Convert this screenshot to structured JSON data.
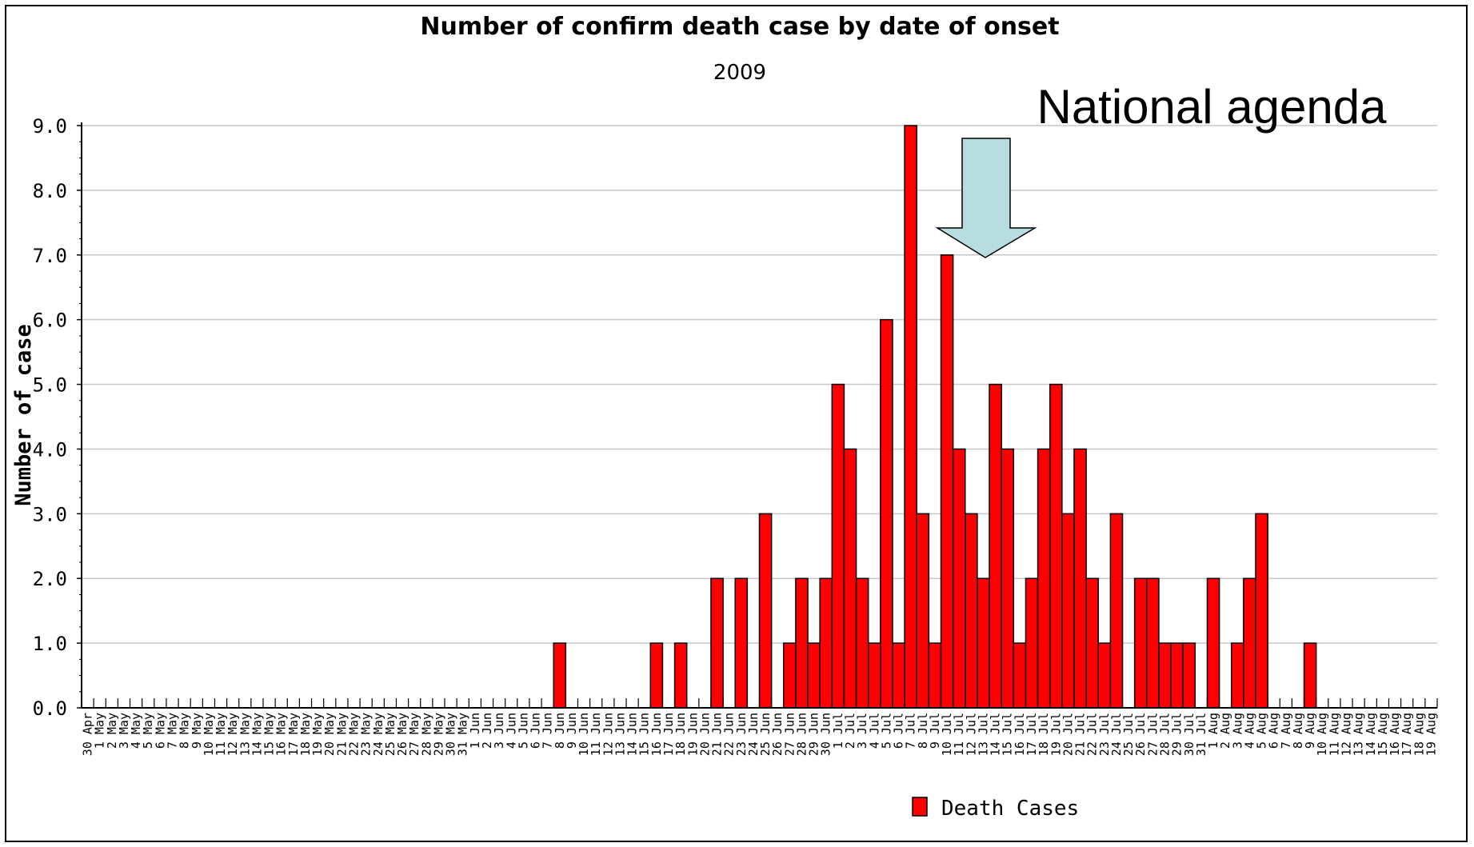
{
  "chart_data": {
    "type": "bar",
    "title": "Number of confirm death case by date of onset",
    "subtitle": "2009",
    "ylabel": "Number of case",
    "xlabel": "",
    "ylim": [
      0,
      9
    ],
    "yticks": [
      "0.0",
      "1.0",
      "2.0",
      "3.0",
      "4.0",
      "5.0",
      "6.0",
      "7.0",
      "8.0",
      "9.0"
    ],
    "grid": true,
    "legend_position": "bottom",
    "categories": [
      "30 Apr",
      "1 May",
      "2 May",
      "3 May",
      "4 May",
      "5 May",
      "6 May",
      "7 May",
      "8 May",
      "9 May",
      "10 May",
      "11 May",
      "12 May",
      "13 May",
      "14 May",
      "15 May",
      "16 May",
      "17 May",
      "18 May",
      "19 May",
      "20 May",
      "21 May",
      "22 May",
      "23 May",
      "24 May",
      "25 May",
      "26 May",
      "27 May",
      "28 May",
      "29 May",
      "30 May",
      "31 May",
      "1 Jun",
      "2 Jun",
      "3 Jun",
      "4 Jun",
      "5 Jun",
      "6 Jun",
      "7 Jun",
      "8 Jun",
      "9 Jun",
      "10 Jun",
      "11 Jun",
      "12 Jun",
      "13 Jun",
      "14 Jun",
      "15 Jun",
      "16 Jun",
      "17 Jun",
      "18 Jun",
      "19 Jun",
      "20 Jun",
      "21 Jun",
      "22 Jun",
      "23 Jun",
      "24 Jun",
      "25 Jun",
      "26 Jun",
      "27 Jun",
      "28 Jun",
      "29 Jun",
      "30 Jun",
      "1 Jul",
      "2 Jul",
      "3 Jul",
      "4 Jul",
      "5 Jul",
      "6 Jul",
      "7 Jul",
      "8 Jul",
      "9 Jul",
      "10 Jul",
      "11 Jul",
      "12 Jul",
      "13 Jul",
      "14 Jul",
      "15 Jul",
      "16 Jul",
      "17 Jul",
      "18 Jul",
      "19 Jul",
      "20 Jul",
      "21 Jul",
      "22 Jul",
      "23 Jul",
      "24 Jul",
      "25 Jul",
      "26 Jul",
      "27 Jul",
      "28 Jul",
      "29 Jul",
      "30 Jul",
      "31 Jul",
      "1 Aug",
      "2 Aug",
      "3 Aug",
      "4 Aug",
      "5 Aug",
      "6 Aug",
      "7 Aug",
      "8 Aug",
      "9 Aug",
      "10 Aug",
      "11 Aug",
      "12 Aug",
      "13 Aug",
      "14 Aug",
      "15 Aug",
      "16 Aug",
      "17 Aug",
      "18 Aug",
      "19 Aug"
    ],
    "series": [
      {
        "name": "Death Cases",
        "color": "#ff0000",
        "values": [
          0,
          0,
          0,
          0,
          0,
          0,
          0,
          0,
          0,
          0,
          0,
          0,
          0,
          0,
          0,
          0,
          0,
          0,
          0,
          0,
          0,
          0,
          0,
          0,
          0,
          0,
          0,
          0,
          0,
          0,
          0,
          0,
          0,
          0,
          0,
          0,
          0,
          0,
          0,
          1,
          0,
          0,
          0,
          0,
          0,
          0,
          0,
          1,
          0,
          1,
          0,
          0,
          2,
          0,
          2,
          0,
          3,
          0,
          1,
          2,
          1,
          2,
          5,
          4,
          2,
          1,
          6,
          1,
          9,
          3,
          1,
          7,
          4,
          3,
          2,
          5,
          4,
          1,
          2,
          4,
          5,
          3,
          4,
          2,
          1,
          3,
          0,
          2,
          2,
          1,
          1,
          1,
          0,
          2,
          0,
          1,
          2,
          3,
          0,
          0,
          0,
          1,
          0,
          0,
          0,
          0,
          0,
          0,
          0,
          0,
          0,
          0
        ]
      }
    ],
    "annotations": [
      {
        "text": "National agenda",
        "arrow": "down",
        "arrow_color": "#b8dde0"
      }
    ]
  }
}
